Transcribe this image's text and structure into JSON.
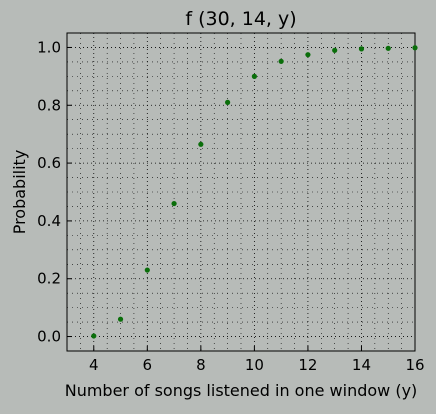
{
  "chart_data": {
    "type": "scatter",
    "title": "f (30, 14, y)",
    "xlabel": "Number of songs listened in one window (y)",
    "ylabel": "Probability",
    "xlim": [
      3,
      16
    ],
    "ylim": [
      -0.05,
      1.05
    ],
    "xticks": [
      4,
      6,
      8,
      10,
      12,
      14,
      16
    ],
    "yticks": [
      0.0,
      0.2,
      0.4,
      0.6,
      0.8,
      1.0
    ],
    "xtick_labels": [
      "4",
      "6",
      "8",
      "10",
      "12",
      "14",
      "16"
    ],
    "ytick_labels": [
      "0.0",
      "0.2",
      "0.4",
      "0.6",
      "0.8",
      "1.0"
    ],
    "grid": true,
    "minor_grid": true,
    "marker_color": "#0a6e0a",
    "plot_background": "#b7bbb8",
    "series": [
      {
        "x": [
          4,
          5,
          6,
          7,
          8,
          9,
          10,
          11,
          12,
          13,
          14,
          15,
          16
        ],
        "y": [
          0.002,
          0.06,
          0.23,
          0.46,
          0.665,
          0.81,
          0.9,
          0.952,
          0.975,
          0.99,
          0.995,
          0.997,
          0.999
        ]
      }
    ]
  }
}
